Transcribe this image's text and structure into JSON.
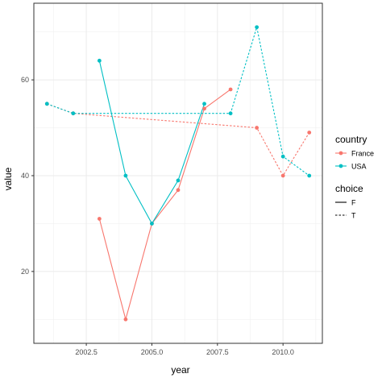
{
  "chart_data": {
    "type": "line",
    "xlabel": "year",
    "ylabel": "value",
    "xlim": [
      2000.5,
      2011.5
    ],
    "ylim": [
      5,
      76
    ],
    "x_ticks": [
      2002.5,
      2005,
      2007.5,
      2010
    ],
    "x_tick_labels": [
      "2002.5",
      "2005.0",
      "2007.5",
      "2010.0"
    ],
    "y_ticks": [
      20,
      40,
      60
    ],
    "y_tick_labels": [
      "20",
      "40",
      "60"
    ],
    "grid": true,
    "colors": {
      "France": "#F8766D",
      "USA": "#00BFC4"
    },
    "series": [
      {
        "country": "France",
        "choice": "F",
        "line": "solid",
        "x": [
          2003,
          2004,
          2005,
          2006,
          2007,
          2008
        ],
        "y": [
          31,
          10,
          30,
          37,
          54,
          58
        ]
      },
      {
        "country": "France",
        "choice": "T",
        "line": "dashed",
        "x": [
          2001,
          2002,
          2009,
          2010,
          2011
        ],
        "y": [
          55,
          53,
          50,
          40,
          49
        ]
      },
      {
        "country": "USA",
        "choice": "F",
        "line": "solid",
        "x": [
          2003,
          2004,
          2005,
          2006,
          2007
        ],
        "y": [
          64,
          40,
          30,
          39,
          55
        ]
      },
      {
        "country": "USA",
        "choice": "T",
        "line": "dashed",
        "x": [
          2001,
          2002,
          2008,
          2009,
          2010,
          2011
        ],
        "y": [
          55,
          53,
          53,
          71,
          44,
          40
        ]
      }
    ],
    "legend": {
      "placement": "right",
      "country_title": "country",
      "country_items": [
        {
          "label": "France",
          "color": "#F8766D"
        },
        {
          "label": "USA",
          "color": "#00BFC4"
        }
      ],
      "choice_title": "choice",
      "choice_items": [
        {
          "label": "F",
          "line": "solid"
        },
        {
          "label": "T",
          "line": "dashed"
        }
      ]
    }
  }
}
